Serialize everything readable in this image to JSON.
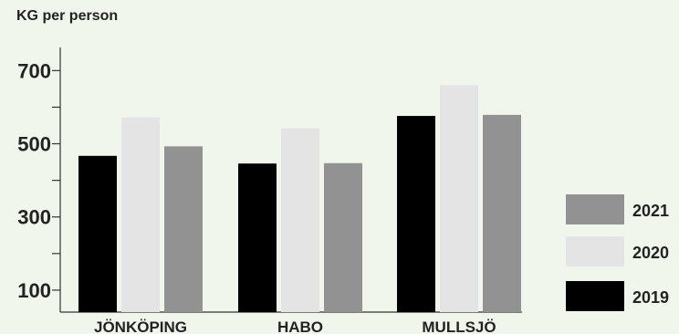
{
  "chart_data": {
    "type": "bar",
    "ylabel": "KG per person",
    "categories": [
      "JÖNKÖPING",
      "HABO",
      "MULLSJÖ"
    ],
    "series": [
      {
        "name": "2019",
        "values": [
          467,
          446,
          576
        ],
        "color": "#000000"
      },
      {
        "name": "2020",
        "values": [
          572,
          542,
          660
        ],
        "color": "#e4e4e4"
      },
      {
        "name": "2021",
        "values": [
          493,
          447,
          579
        ],
        "color": "#929292"
      }
    ],
    "ylim": [
      40,
      720
    ],
    "yticks": [
      100,
      300,
      500,
      700
    ],
    "legend_order": [
      "2021",
      "2020",
      "2019"
    ],
    "legend_position": "bottom-right",
    "grid": false
  }
}
